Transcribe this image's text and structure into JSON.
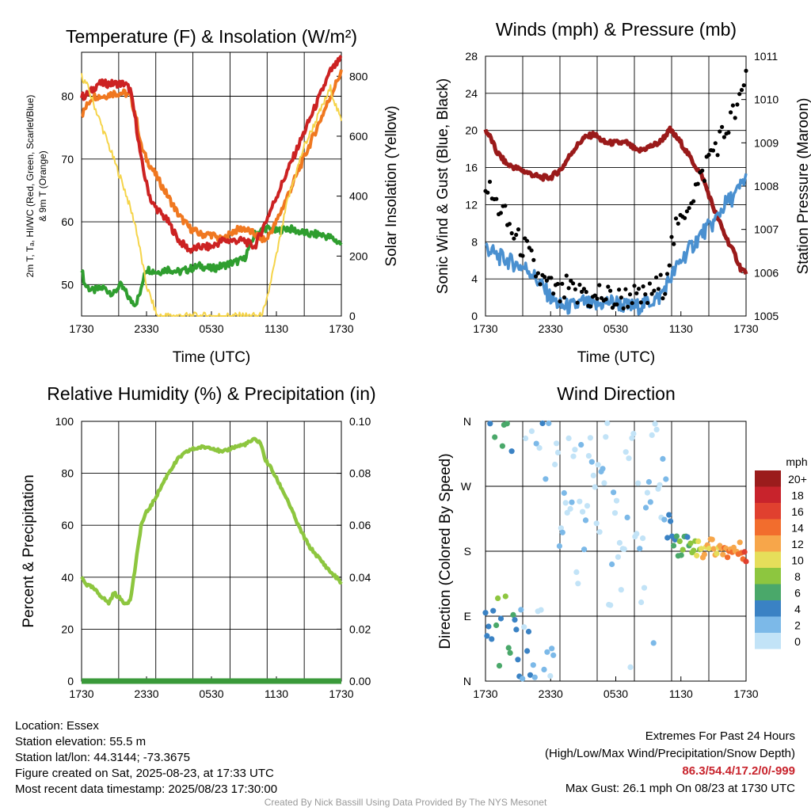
{
  "chart_data": [
    {
      "type": "line",
      "title": "Temperature (F) & Insolation (W/m²)",
      "xlabel": "Time (UTC)",
      "ylabel_left": [
        "2m T, Tₐ, HI/WC (Red, Green, Scarlet/Blue)",
        "& 9m T (Orange)"
      ],
      "ylabel_right": "Solar Insolation (Yellow)",
      "x_ticks": [
        "1730",
        "2330",
        "0530",
        "1130",
        "1730"
      ],
      "ylim_left": [
        45,
        87
      ],
      "yticks_left": [
        50,
        60,
        70,
        80
      ],
      "ylim_right": [
        0,
        880
      ],
      "yticks_right": [
        0,
        200,
        400,
        600,
        800
      ],
      "series": [
        {
          "color": "#2f9e2f",
          "axis": "left",
          "x": [
            0,
            0.3,
            1,
            2,
            3,
            3.5,
            4,
            4.5,
            5,
            5.5,
            5.8,
            6,
            7,
            8,
            9,
            10,
            11,
            12,
            13,
            14,
            15,
            16,
            17,
            18,
            19,
            20,
            21,
            22,
            23,
            24
          ],
          "values": [
            52.5,
            50,
            49,
            49.5,
            48.5,
            50,
            49,
            47.5,
            47,
            49,
            52,
            52.5,
            52,
            52.5,
            52,
            52.5,
            53,
            52.5,
            53,
            53.5,
            54,
            58,
            59,
            58.5,
            59,
            58.5,
            58,
            58,
            57.5,
            56.5
          ]
        },
        {
          "color": "#f07820",
          "axis": "left",
          "x": [
            0,
            0.5,
            1,
            2,
            3,
            4,
            4.5,
            5,
            5.5,
            6,
            7,
            8,
            9,
            10,
            11,
            12,
            13,
            14,
            15,
            16,
            17,
            18,
            19,
            20,
            21,
            22,
            23,
            23.5,
            24
          ],
          "values": [
            77,
            78.5,
            80,
            80,
            80.5,
            80.5,
            80,
            77,
            72,
            70,
            67,
            64,
            61,
            59,
            58,
            58,
            57,
            58.5,
            59,
            58,
            57,
            60,
            64,
            68,
            72,
            76,
            80,
            82,
            84
          ]
        },
        {
          "color": "#cc2222",
          "axis": "left",
          "x": [
            0,
            0.3,
            1,
            1.5,
            2,
            3,
            4,
            4.5,
            5,
            5.5,
            6,
            6.5,
            7,
            8,
            9,
            10,
            11,
            12,
            13,
            14,
            15,
            16,
            17,
            18,
            19,
            20,
            21,
            22,
            23,
            23.5,
            24
          ],
          "values": [
            80,
            80,
            81,
            82,
            82,
            82,
            82,
            81,
            76,
            70,
            66,
            63,
            62,
            60,
            57,
            55.5,
            56,
            56,
            57,
            57,
            57,
            56,
            60,
            64,
            68,
            72,
            76,
            80,
            84,
            85,
            86
          ]
        },
        {
          "color": "#f5d44a",
          "axis": "right",
          "x": [
            0,
            0.5,
            1,
            2,
            3,
            4,
            5,
            5.5,
            6,
            7,
            8,
            9,
            10,
            11,
            12,
            13,
            14,
            15,
            16,
            16.5,
            17,
            17.5,
            18,
            19,
            20,
            20.5,
            21,
            22,
            23,
            23.5,
            24
          ],
          "values": [
            800,
            770,
            720,
            620,
            520,
            420,
            300,
            200,
            100,
            0,
            0,
            0,
            0,
            0,
            0,
            0,
            0,
            0,
            0,
            0,
            30,
            120,
            200,
            380,
            500,
            560,
            600,
            680,
            760,
            700,
            650
          ]
        }
      ]
    },
    {
      "type": "line",
      "title": "Winds (mph) & Pressure (mb)",
      "xlabel": "Time (UTC)",
      "ylabel_left": "Sonic Wind & Gust (Blue, Black)",
      "ylabel_right": "Station Pressure (Maroon)",
      "x_ticks": [
        "1730",
        "2330",
        "0530",
        "1130",
        "1730"
      ],
      "ylim_left": [
        0,
        28
      ],
      "yticks_left": [
        0,
        4,
        8,
        12,
        16,
        20,
        24,
        28
      ],
      "ylim_right": [
        1005,
        1011
      ],
      "yticks_right": [
        1005,
        1006,
        1007,
        1008,
        1009,
        1010,
        1011
      ],
      "series": [
        {
          "color": "#9a1a1a",
          "axis": "right",
          "x": [
            0,
            0.5,
            1,
            2,
            3,
            4,
            5,
            6,
            7,
            8,
            9,
            10,
            11,
            12,
            13,
            14,
            15,
            16,
            17,
            18,
            19,
            20,
            21,
            22,
            23,
            23.5,
            24
          ],
          "values": [
            1009.3,
            1009.1,
            1008.8,
            1008.5,
            1008.4,
            1008.3,
            1008.2,
            1008.2,
            1008.4,
            1008.8,
            1009.1,
            1009.2,
            1009,
            1009,
            1009,
            1008.8,
            1008.9,
            1009,
            1009.3,
            1009,
            1008.6,
            1008.2,
            1007.5,
            1006.9,
            1006.4,
            1006.1,
            1006
          ]
        },
        {
          "color": "#4a90d0",
          "axis": "left",
          "x": [
            0,
            0.5,
            1,
            2,
            3,
            4,
            5,
            6,
            7,
            8,
            9,
            10,
            11,
            12,
            13,
            14,
            15,
            16,
            17,
            18,
            19,
            20,
            21,
            22,
            23,
            24
          ],
          "values": [
            7.5,
            7,
            6.5,
            6,
            5.5,
            5,
            3.5,
            2,
            1,
            1,
            1.5,
            1,
            1.5,
            1.5,
            1,
            1,
            1.5,
            2,
            4,
            6,
            7.5,
            9,
            10,
            12,
            13,
            15
          ]
        }
      ],
      "points": {
        "color": "#000000",
        "x": [
          0,
          0.5,
          1,
          1.5,
          2,
          2.5,
          3,
          3.5,
          4,
          4.5,
          5,
          5.5,
          6,
          6.5,
          7,
          7.5,
          8,
          8.5,
          9,
          9.5,
          10,
          10.5,
          11,
          11.5,
          12,
          12.5,
          13,
          13.5,
          14,
          14.5,
          15,
          15.5,
          16,
          16.5,
          17,
          17.5,
          18,
          18.5,
          19,
          19.5,
          20,
          20.5,
          21,
          21.5,
          22,
          22.5,
          23,
          23.5,
          24
        ],
        "values": [
          14.5,
          13,
          12,
          11.5,
          10,
          9,
          8,
          7.5,
          6.5,
          5,
          4,
          3.5,
          3,
          2.5,
          2,
          3,
          2.5,
          2,
          3,
          2,
          1.5,
          2.5,
          2,
          2,
          1.5,
          2,
          2,
          2.5,
          1.5,
          2,
          2,
          3,
          3,
          3.5,
          7,
          9,
          10,
          12,
          13,
          14,
          15,
          17,
          18,
          19,
          19.5,
          21,
          22,
          23,
          26
        ]
      }
    },
    {
      "type": "line",
      "title": "Relative Humidity (%) & Precipitation (in)",
      "ylabel_left": "Percent & Precipitation",
      "x_ticks": [
        "1730",
        "2330",
        "0530",
        "1130",
        "1730"
      ],
      "ylim_left": [
        0,
        100
      ],
      "yticks_left": [
        0,
        20,
        40,
        60,
        80,
        100
      ],
      "ylim_right": [
        0,
        0.1
      ],
      "yticks_right": [
        "0.00",
        "0.02",
        "0.04",
        "0.06",
        "0.08",
        "0.10"
      ],
      "series": [
        {
          "color": "#8dc63f",
          "axis": "left",
          "x": [
            0,
            0.5,
            1,
            2,
            2.5,
            3,
            3.5,
            4,
            4.5,
            5,
            5.5,
            6,
            6.5,
            7,
            8,
            9,
            10,
            11,
            12,
            13,
            14,
            15,
            16,
            16.5,
            17,
            17.5,
            18,
            19,
            20,
            21,
            22,
            23,
            24
          ],
          "values": [
            40,
            37,
            36,
            32,
            30,
            34,
            32,
            30,
            31,
            45,
            60,
            65,
            68,
            72,
            80,
            86,
            89,
            90,
            90,
            88,
            90,
            91,
            93,
            92,
            85,
            82,
            78,
            70,
            60,
            52,
            47,
            42,
            38
          ]
        },
        {
          "color": "#3a9a3a",
          "axis": "right",
          "x": [
            0,
            24
          ],
          "values": [
            0,
            0
          ]
        }
      ]
    },
    {
      "type": "scatter",
      "title": "Wind Direction",
      "ylabel_left": "Direction (Colored By Speed)",
      "x_ticks": [
        "1730",
        "2330",
        "0530",
        "1130",
        "1730"
      ],
      "y_ticks": [
        "N",
        "E",
        "S",
        "W",
        "N"
      ],
      "ylim": [
        0,
        360
      ],
      "colorbar": {
        "unit": "mph",
        "labels": [
          "20+",
          "18",
          "16",
          "14",
          "12",
          "10",
          "8",
          "6",
          "4",
          "2",
          "0"
        ],
        "colors": [
          "#9b1c1c",
          "#c8232c",
          "#e0402f",
          "#f26d2d",
          "#f7a64a",
          "#e6de5a",
          "#8dc63f",
          "#4aa86a",
          "#3a82c4",
          "#7cb9e8",
          "#c2e3f7"
        ]
      },
      "points": [
        {
          "x": 0.5,
          "dir": 30,
          "spd": 5
        },
        {
          "x": 1,
          "dir": 40,
          "spd": 7
        },
        {
          "x": 1.5,
          "dir": 30,
          "spd": 6
        },
        {
          "x": 2,
          "dir": 45,
          "spd": 8
        },
        {
          "x": 2.5,
          "dir": 35,
          "spd": 5
        },
        {
          "x": 3,
          "dir": 20,
          "spd": 4
        },
        {
          "x": 3.5,
          "dir": 50,
          "spd": 3
        },
        {
          "x": 4,
          "dir": 25,
          "spd": 4
        },
        {
          "x": 4.5,
          "dir": 10,
          "spd": 2
        },
        {
          "x": 5,
          "dir": 30,
          "spd": 2
        },
        {
          "x": 5.5,
          "dir": 355,
          "spd": 3
        },
        {
          "x": 6,
          "dir": 340,
          "spd": 2
        },
        {
          "x": 6.5,
          "dir": 330,
          "spd": 1
        },
        {
          "x": 7,
          "dir": 220,
          "spd": 2
        },
        {
          "x": 7.5,
          "dir": 270,
          "spd": 1
        },
        {
          "x": 8,
          "dir": 300,
          "spd": 2
        },
        {
          "x": 8.5,
          "dir": 190,
          "spd": 1
        },
        {
          "x": 9,
          "dir": 250,
          "spd": 2
        },
        {
          "x": 9.5,
          "dir": 320,
          "spd": 1
        },
        {
          "x": 10,
          "dir": 230,
          "spd": 2
        },
        {
          "x": 10.5,
          "dir": 280,
          "spd": 1
        },
        {
          "x": 11,
          "dir": 340,
          "spd": 2
        },
        {
          "x": 11.5,
          "dir": 170,
          "spd": 1
        },
        {
          "x": 12,
          "dir": 250,
          "spd": 2
        },
        {
          "x": 12.5,
          "dir": 200,
          "spd": 1
        },
        {
          "x": 13,
          "dir": 240,
          "spd": 2
        },
        {
          "x": 13.5,
          "dir": 310,
          "spd": 1
        },
        {
          "x": 14,
          "dir": 260,
          "spd": 2
        },
        {
          "x": 14.5,
          "dir": 120,
          "spd": 1
        },
        {
          "x": 15,
          "dir": 270,
          "spd": 3
        },
        {
          "x": 15.5,
          "dir": 340,
          "spd": 2
        },
        {
          "x": 16,
          "dir": 290,
          "spd": 1
        },
        {
          "x": 16.5,
          "dir": 260,
          "spd": 3
        },
        {
          "x": 17,
          "dir": 210,
          "spd": 5
        },
        {
          "x": 17.5,
          "dir": 200,
          "spd": 7
        },
        {
          "x": 18,
          "dir": 185,
          "spd": 8
        },
        {
          "x": 18.5,
          "dir": 195,
          "spd": 6
        },
        {
          "x": 19,
          "dir": 190,
          "spd": 9
        },
        {
          "x": 19.5,
          "dir": 185,
          "spd": 10
        },
        {
          "x": 20,
          "dir": 180,
          "spd": 11
        },
        {
          "x": 20.5,
          "dir": 190,
          "spd": 12
        },
        {
          "x": 21,
          "dir": 185,
          "spd": 13
        },
        {
          "x": 21.5,
          "dir": 180,
          "spd": 12
        },
        {
          "x": 22,
          "dir": 185,
          "spd": 14
        },
        {
          "x": 22.5,
          "dir": 180,
          "spd": 13
        },
        {
          "x": 23,
          "dir": 182,
          "spd": 15
        },
        {
          "x": 23.5,
          "dir": 180,
          "spd": 14
        },
        {
          "x": 24,
          "dir": 178,
          "spd": 16
        }
      ]
    }
  ],
  "info_left": [
    "Location: Essex",
    "Station elevation: 55.5 m",
    "Station lat/lon: 44.3144; -73.3675",
    "Figure created on Sat, 2025-08-23, at 17:33 UTC",
    "Most recent data timestamp: 2025/08/23 17:30:00"
  ],
  "info_right": {
    "title": "Extremes For Past 24 Hours",
    "subtitle": "(High/Low/Max Wind/Precipitation/Snow Depth)",
    "extremes": "86.3/54.4/17.2/0/-999",
    "gust": "Max Gust: 26.1 mph On 08/23 at 1730 UTC"
  },
  "credit": "Created By Nick Bassill Using Data Provided By The NYS Mesonet"
}
